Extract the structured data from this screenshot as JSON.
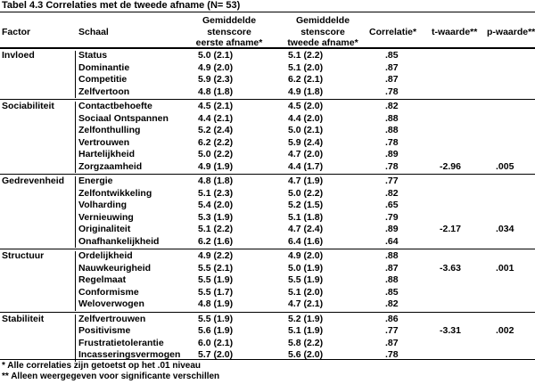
{
  "title": "Tabel 4.3 Correlaties met de tweede afname (N= 53)",
  "headers": {
    "factor": "Factor",
    "schaal": "Schaal",
    "eerste": [
      "Gemiddelde",
      "stenscore",
      "eerste afname*"
    ],
    "tweede": [
      "Gemiddelde",
      "stenscore",
      "tweede afname*"
    ],
    "correlatie": "Correlatie*",
    "t": "t-waarde**",
    "p": "p-waarde**"
  },
  "groups": [
    {
      "factor": "Invloed",
      "rows": [
        {
          "schaal": "Status",
          "eerste": "5.0 (2.1)",
          "tweede": "5.1 (2.2)",
          "r": ".85",
          "t": "",
          "p": ""
        },
        {
          "schaal": "Dominantie",
          "eerste": "4.9 (2.0)",
          "tweede": "5.1 (2.0)",
          "r": ".87",
          "t": "",
          "p": ""
        },
        {
          "schaal": "Competitie",
          "eerste": "5.9 (2.3)",
          "tweede": "6.2 (2.1)",
          "r": ".87",
          "t": "",
          "p": ""
        },
        {
          "schaal": "Zelfvertoon",
          "eerste": "4.8 (1.8)",
          "tweede": "4.9 (1.8)",
          "r": ".78",
          "t": "",
          "p": ""
        }
      ]
    },
    {
      "factor": "Sociabiliteit",
      "rows": [
        {
          "schaal": "Contactbehoefte",
          "eerste": "4.5 (2.1)",
          "tweede": "4.5 (2.0)",
          "r": ".82",
          "t": "",
          "p": ""
        },
        {
          "schaal": "Sociaal Ontspannen",
          "eerste": "4.4 (2.1)",
          "tweede": "4.4 (2.0)",
          "r": ".88",
          "t": "",
          "p": ""
        },
        {
          "schaal": "Zelfonthulling",
          "eerste": "5.2 (2.4)",
          "tweede": "5.0 (2.1)",
          "r": ".88",
          "t": "",
          "p": ""
        },
        {
          "schaal": "Vertrouwen",
          "eerste": "6.2 (2.2)",
          "tweede": "5.9 (2.4)",
          "r": ".78",
          "t": "",
          "p": ""
        },
        {
          "schaal": "Hartelijkheid",
          "eerste": "5.0 (2.2)",
          "tweede": "4.7 (2.0)",
          "r": ".89",
          "t": "",
          "p": ""
        },
        {
          "schaal": "Zorgzaamheid",
          "eerste": "4.9 (1.9)",
          "tweede": "4.4 (1.7)",
          "r": ".78",
          "t": "-2.96",
          "p": ".005"
        }
      ]
    },
    {
      "factor": "Gedrevenheid",
      "rows": [
        {
          "schaal": "Energie",
          "eerste": "4.8 (1.8)",
          "tweede": "4.7 (1.9)",
          "r": ".77",
          "t": "",
          "p": ""
        },
        {
          "schaal": "Zelfontwikkeling",
          "eerste": "5.1 (2.3)",
          "tweede": "5.0 (2.2)",
          "r": ".82",
          "t": "",
          "p": ""
        },
        {
          "schaal": "Volharding",
          "eerste": "5.4 (2.0)",
          "tweede": "5.2 (1.5)",
          "r": ".65",
          "t": "",
          "p": ""
        },
        {
          "schaal": "Vernieuwing",
          "eerste": "5.3 (1.9)",
          "tweede": "5.1 (1.8)",
          "r": ".79",
          "t": "",
          "p": ""
        },
        {
          "schaal": "Originaliteit",
          "eerste": "5.1 (2.2)",
          "tweede": "4.7 (2.4)",
          "r": ".89",
          "t": "-2.17",
          "p": ".034"
        },
        {
          "schaal": "Onafhankelijkheid",
          "eerste": "6.2 (1.6)",
          "tweede": "6.4 (1.6)",
          "r": ".64",
          "t": "",
          "p": ""
        }
      ]
    },
    {
      "factor": "Structuur",
      "rows": [
        {
          "schaal": "Ordelijkheid",
          "eerste": "4.9 (2.2)",
          "tweede": "4.9 (2.0)",
          "r": ".88",
          "t": "",
          "p": ""
        },
        {
          "schaal": "Nauwkeurigheid",
          "eerste": "5.5 (2.1)",
          "tweede": "5.0 (1.9)",
          "r": ".87",
          "t": "-3.63",
          "p": ".001"
        },
        {
          "schaal": "Regelmaat",
          "eerste": "5.5 (1.9)",
          "tweede": "5.5 (1.9)",
          "r": ".88",
          "t": "",
          "p": ""
        },
        {
          "schaal": "Conformisme",
          "eerste": "5.5 (1.7)",
          "tweede": "5.1 (2.0)",
          "r": ".85",
          "t": "",
          "p": ""
        },
        {
          "schaal": "Weloverwogen",
          "eerste": "4.8 (1.9)",
          "tweede": "4.7 (2.1)",
          "r": ".82",
          "t": "",
          "p": ""
        }
      ]
    },
    {
      "factor": "Stabiliteit",
      "rows": [
        {
          "schaal": "Zelfvertrouwen",
          "eerste": "5.5 (1.9)",
          "tweede": "5.2 (1.9)",
          "r": ".86",
          "t": "",
          "p": ""
        },
        {
          "schaal": "Positivisme",
          "eerste": "5.6 (1.9)",
          "tweede": "5.1 (1.9)",
          "r": ".77",
          "t": "-3.31",
          "p": ".002"
        },
        {
          "schaal": "Frustratietolerantie",
          "eerste": "6.0 (2.1)",
          "tweede": "5.8 (2.2)",
          "r": ".87",
          "t": "",
          "p": ""
        },
        {
          "schaal": "Incasseringsvermogen",
          "eerste": "5.7 (2.0)",
          "tweede": "5.6 (2.0)",
          "r": ".78",
          "t": "",
          "p": ""
        }
      ]
    }
  ],
  "notes": [
    "* Alle correlaties zijn getoetst op het .01 niveau",
    "** Alleen weergegeven voor significante verschillen"
  ]
}
